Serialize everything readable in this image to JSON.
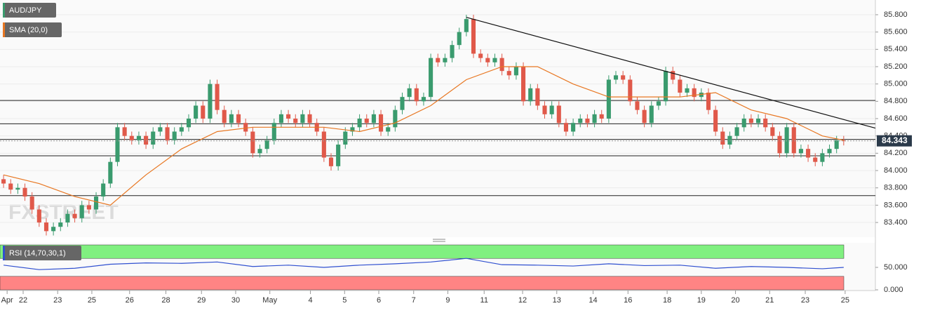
{
  "chart_data": {
    "type": "candlestick",
    "title": "AUD/JPY",
    "watermark": "FXSTREET",
    "up_color": "#3a9b6e",
    "down_color": "#e0594a",
    "xlim": [
      -0.5,
      122.45
    ],
    "ylim": [
      83.23,
      85.97
    ],
    "yticks": [
      {
        "value": 83.4,
        "label": "83.400"
      },
      {
        "value": 83.6,
        "label": "83.600"
      },
      {
        "value": 83.8,
        "label": "83.800"
      },
      {
        "value": 84.0,
        "label": "84.000"
      },
      {
        "value": 84.2,
        "label": "84.200"
      },
      {
        "value": 84.4,
        "label": "84.400"
      },
      {
        "value": 84.6,
        "label": "84.600"
      },
      {
        "value": 84.8,
        "label": "84.800"
      },
      {
        "value": 85.0,
        "label": "85.000"
      },
      {
        "value": 85.2,
        "label": "85.200"
      },
      {
        "value": 85.4,
        "label": "85.400"
      },
      {
        "value": 85.6,
        "label": "85.600"
      },
      {
        "value": 85.8,
        "label": "85.800"
      }
    ],
    "xticks": [
      {
        "value": 0.5,
        "label": "Apr"
      },
      {
        "value": 2.75,
        "label": "22"
      },
      {
        "value": 7.6,
        "label": "23"
      },
      {
        "value": 12.4,
        "label": "25"
      },
      {
        "value": 17.7,
        "label": "26"
      },
      {
        "value": 22.8,
        "label": "28"
      },
      {
        "value": 27.8,
        "label": "29"
      },
      {
        "value": 32.6,
        "label": "30"
      },
      {
        "value": 37.4,
        "label": "May"
      },
      {
        "value": 43.1,
        "label": "4"
      },
      {
        "value": 47.9,
        "label": "5"
      },
      {
        "value": 52.7,
        "label": "6"
      },
      {
        "value": 57.6,
        "label": "7"
      },
      {
        "value": 62.4,
        "label": "9"
      },
      {
        "value": 67.5,
        "label": "11"
      },
      {
        "value": 72.9,
        "label": "12"
      },
      {
        "value": 77.7,
        "label": "13"
      },
      {
        "value": 82.8,
        "label": "14"
      },
      {
        "value": 87.7,
        "label": "16"
      },
      {
        "value": 93.2,
        "label": "18"
      },
      {
        "value": 98.0,
        "label": "19"
      },
      {
        "value": 102.8,
        "label": "20"
      },
      {
        "value": 107.6,
        "label": "21"
      },
      {
        "value": 112.6,
        "label": "23"
      },
      {
        "value": 118.2,
        "label": "25"
      }
    ],
    "grid": true,
    "candles": [
      [
        83.9,
        83.95,
        83.8,
        83.85
      ],
      [
        83.85,
        83.9,
        83.73,
        83.78
      ],
      [
        83.78,
        83.85,
        83.73,
        83.8
      ],
      [
        83.8,
        83.85,
        83.65,
        83.7
      ],
      [
        83.7,
        83.75,
        83.5,
        83.55
      ],
      [
        83.55,
        83.6,
        83.35,
        83.4
      ],
      [
        83.4,
        83.45,
        83.25,
        83.3
      ],
      [
        83.3,
        83.4,
        83.25,
        83.35
      ],
      [
        83.35,
        83.45,
        83.3,
        83.4
      ],
      [
        83.4,
        83.55,
        83.35,
        83.5
      ],
      [
        83.5,
        83.55,
        83.4,
        83.45
      ],
      [
        83.45,
        83.65,
        83.4,
        83.6
      ],
      [
        83.6,
        83.65,
        83.5,
        83.55
      ],
      [
        83.55,
        83.75,
        83.5,
        83.7
      ],
      [
        83.7,
        83.9,
        83.65,
        83.85
      ],
      [
        83.85,
        84.15,
        83.8,
        84.1
      ],
      [
        84.1,
        84.55,
        84.05,
        84.5
      ],
      [
        84.5,
        84.55,
        84.35,
        84.4
      ],
      [
        84.4,
        84.45,
        84.3,
        84.35
      ],
      [
        84.35,
        84.45,
        84.3,
        84.4
      ],
      [
        84.4,
        84.45,
        84.25,
        84.3
      ],
      [
        84.3,
        84.5,
        84.25,
        84.45
      ],
      [
        84.45,
        84.55,
        84.4,
        84.5
      ],
      [
        84.5,
        84.55,
        84.3,
        84.35
      ],
      [
        84.35,
        84.5,
        84.3,
        84.45
      ],
      [
        84.45,
        84.55,
        84.4,
        84.5
      ],
      [
        84.5,
        84.65,
        84.45,
        84.6
      ],
      [
        84.6,
        84.8,
        84.55,
        84.75
      ],
      [
        84.75,
        84.8,
        84.55,
        84.6
      ],
      [
        84.6,
        85.05,
        84.55,
        85.0
      ],
      [
        85.0,
        85.05,
        84.65,
        84.7
      ],
      [
        84.7,
        84.75,
        84.5,
        84.55
      ],
      [
        84.55,
        84.7,
        84.5,
        84.65
      ],
      [
        84.65,
        84.7,
        84.5,
        84.55
      ],
      [
        84.55,
        84.6,
        84.4,
        84.45
      ],
      [
        84.45,
        84.5,
        84.15,
        84.2
      ],
      [
        84.2,
        84.3,
        84.15,
        84.25
      ],
      [
        84.25,
        84.4,
        84.2,
        84.35
      ],
      [
        84.35,
        84.6,
        84.3,
        84.55
      ],
      [
        84.55,
        84.7,
        84.5,
        84.65
      ],
      [
        84.65,
        84.7,
        84.55,
        84.6
      ],
      [
        84.6,
        84.65,
        84.5,
        84.55
      ],
      [
        84.55,
        84.7,
        84.5,
        84.65
      ],
      [
        84.65,
        84.7,
        84.5,
        84.55
      ],
      [
        84.55,
        84.6,
        84.4,
        84.45
      ],
      [
        84.45,
        84.5,
        84.1,
        84.15
      ],
      [
        84.15,
        84.2,
        84.0,
        84.05
      ],
      [
        84.05,
        84.35,
        84.0,
        84.3
      ],
      [
        84.3,
        84.5,
        84.25,
        84.45
      ],
      [
        84.45,
        84.55,
        84.4,
        84.5
      ],
      [
        84.5,
        84.65,
        84.45,
        84.6
      ],
      [
        84.6,
        84.65,
        84.5,
        84.55
      ],
      [
        84.55,
        84.7,
        84.5,
        84.65
      ],
      [
        84.65,
        84.7,
        84.4,
        84.45
      ],
      [
        84.45,
        84.55,
        84.4,
        84.5
      ],
      [
        84.5,
        84.75,
        84.45,
        84.7
      ],
      [
        84.7,
        84.9,
        84.65,
        84.85
      ],
      [
        84.85,
        85.0,
        84.8,
        84.95
      ],
      [
        84.95,
        85.0,
        84.75,
        84.8
      ],
      [
        84.8,
        84.9,
        84.75,
        84.85
      ],
      [
        84.85,
        85.35,
        84.8,
        85.3
      ],
      [
        85.3,
        85.35,
        85.2,
        85.25
      ],
      [
        85.25,
        85.35,
        85.2,
        85.3
      ],
      [
        85.3,
        85.5,
        85.25,
        85.45
      ],
      [
        85.45,
        85.65,
        85.4,
        85.6
      ],
      [
        85.6,
        85.8,
        85.55,
        85.75
      ],
      [
        85.75,
        85.8,
        85.3,
        85.35
      ],
      [
        85.35,
        85.4,
        85.25,
        85.3
      ],
      [
        85.3,
        85.35,
        85.2,
        85.25
      ],
      [
        85.25,
        85.35,
        85.2,
        85.3
      ],
      [
        85.3,
        85.35,
        85.1,
        85.15
      ],
      [
        85.15,
        85.2,
        85.05,
        85.1
      ],
      [
        85.1,
        85.25,
        85.05,
        85.2
      ],
      [
        85.2,
        85.25,
        84.75,
        84.8
      ],
      [
        84.8,
        85.0,
        84.75,
        84.95
      ],
      [
        84.95,
        85.0,
        84.7,
        84.75
      ],
      [
        84.75,
        84.8,
        84.6,
        84.65
      ],
      [
        84.65,
        84.8,
        84.6,
        84.75
      ],
      [
        84.75,
        84.8,
        84.5,
        84.55
      ],
      [
        84.55,
        84.6,
        84.4,
        84.45
      ],
      [
        84.45,
        84.6,
        84.4,
        84.55
      ],
      [
        84.55,
        84.65,
        84.5,
        84.6
      ],
      [
        84.6,
        84.65,
        84.5,
        84.55
      ],
      [
        84.55,
        84.7,
        84.5,
        84.65
      ],
      [
        84.65,
        84.7,
        84.55,
        84.6
      ],
      [
        84.6,
        85.1,
        84.55,
        85.05
      ],
      [
        85.05,
        85.15,
        85.0,
        85.1
      ],
      [
        85.1,
        85.15,
        85.0,
        85.05
      ],
      [
        85.05,
        85.1,
        84.75,
        84.8
      ],
      [
        84.8,
        84.85,
        84.65,
        84.7
      ],
      [
        84.7,
        84.75,
        84.5,
        84.55
      ],
      [
        84.55,
        84.8,
        84.5,
        84.75
      ],
      [
        84.75,
        84.85,
        84.7,
        84.8
      ],
      [
        84.8,
        85.2,
        84.75,
        85.15
      ],
      [
        85.15,
        85.2,
        85.0,
        85.05
      ],
      [
        85.05,
        85.1,
        84.85,
        84.9
      ],
      [
        84.9,
        85.0,
        84.85,
        84.95
      ],
      [
        84.95,
        85.0,
        84.8,
        84.85
      ],
      [
        84.85,
        84.95,
        84.8,
        84.9
      ],
      [
        84.9,
        84.95,
        84.65,
        84.7
      ],
      [
        84.7,
        84.75,
        84.4,
        84.45
      ],
      [
        84.45,
        84.5,
        84.25,
        84.3
      ],
      [
        84.3,
        84.45,
        84.25,
        84.4
      ],
      [
        84.4,
        84.55,
        84.35,
        84.5
      ],
      [
        84.5,
        84.65,
        84.45,
        84.6
      ],
      [
        84.6,
        84.65,
        84.5,
        84.55
      ],
      [
        84.55,
        84.65,
        84.5,
        84.6
      ],
      [
        84.6,
        84.65,
        84.45,
        84.5
      ],
      [
        84.5,
        84.55,
        84.35,
        84.4
      ],
      [
        84.4,
        84.45,
        84.15,
        84.2
      ],
      [
        84.2,
        84.55,
        84.15,
        84.5
      ],
      [
        84.5,
        84.55,
        84.15,
        84.2
      ],
      [
        84.2,
        84.3,
        84.15,
        84.25
      ],
      [
        84.25,
        84.3,
        84.1,
        84.15
      ],
      [
        84.15,
        84.2,
        84.05,
        84.1
      ],
      [
        84.1,
        84.25,
        84.05,
        84.2
      ],
      [
        84.2,
        84.3,
        84.15,
        84.25
      ],
      [
        84.25,
        84.4,
        84.2,
        84.35
      ],
      [
        84.35,
        84.4,
        84.29,
        84.34
      ]
    ],
    "sma": {
      "name": "SMA (20,0)",
      "color": "#e87722",
      "x": [
        0,
        5,
        10,
        15,
        20,
        25,
        30,
        35,
        40,
        45,
        50,
        55,
        60,
        65,
        70,
        75,
        80,
        85,
        90,
        95,
        100,
        105,
        110,
        115,
        118
      ],
      "values": [
        83.95,
        83.85,
        83.7,
        83.6,
        83.95,
        84.25,
        84.45,
        84.5,
        84.5,
        84.5,
        84.45,
        84.55,
        84.75,
        85.05,
        85.2,
        85.2,
        85.0,
        84.85,
        84.85,
        84.85,
        84.9,
        84.7,
        84.6,
        84.4,
        84.35
      ]
    },
    "trendline": {
      "color": "#111111",
      "x": [
        65,
        122.45
      ],
      "values": [
        85.77,
        84.49
      ]
    },
    "horizontal_lines": [
      84.81,
      84.54,
      84.36,
      84.17,
      83.71
    ],
    "last_price": 84.343,
    "last_price_label": "84.343",
    "rsi": {
      "name": "RSI (14,70,30,1)",
      "color": "#3050d0",
      "ylim": [
        0,
        100
      ],
      "upper": 70,
      "lower": 30,
      "yticks": [
        {
          "value": 0,
          "label": "0.000"
        },
        {
          "value": 50,
          "label": "50.000"
        }
      ],
      "x": [
        0,
        5,
        10,
        15,
        20,
        25,
        30,
        35,
        40,
        45,
        50,
        55,
        60,
        65,
        70,
        75,
        80,
        85,
        90,
        95,
        100,
        105,
        110,
        115,
        118
      ],
      "values": [
        55,
        45,
        48,
        57,
        60,
        59,
        62,
        52,
        55,
        50,
        55,
        58,
        62,
        70,
        56,
        55,
        53,
        58,
        54,
        55,
        48,
        52,
        50,
        47,
        50
      ]
    }
  }
}
